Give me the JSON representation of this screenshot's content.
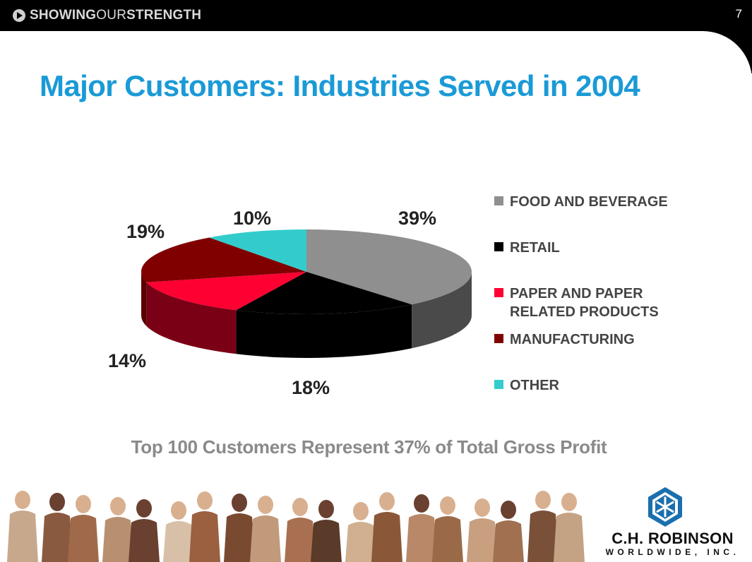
{
  "header": {
    "brand_bold": "SHOWING",
    "brand_thin": "OUR",
    "brand_bold2": "STRENGTH",
    "page_number": "7"
  },
  "title": "Major Customers: Industries Served in 2004",
  "chart_data": {
    "type": "pie",
    "title": "Major Customers: Industries Served in 2004",
    "categories": [
      "FOOD AND BEVERAGE",
      "RETAIL",
      "PAPER AND PAPER RELATED PRODUCTS",
      "MANUFACTURING",
      "OTHER"
    ],
    "values": [
      39,
      18,
      14,
      19,
      10
    ],
    "labels": [
      "39%",
      "18%",
      "14%",
      "19%",
      "10%"
    ],
    "colors": [
      "#8f8f8f",
      "#000000",
      "#ff0033",
      "#800000",
      "#33cccc"
    ],
    "side_colors": [
      "#4a4a4a",
      "#000000",
      "#7a0015",
      "#5a0000",
      "#1a8f8f"
    ],
    "legend_placement": "right",
    "style": "3d"
  },
  "subtitle": "Top 100 Customers Represent 37% of Total Gross Profit",
  "logo": {
    "name": "C.H. ROBINSON",
    "sub": "WORLDWIDE, INC."
  }
}
